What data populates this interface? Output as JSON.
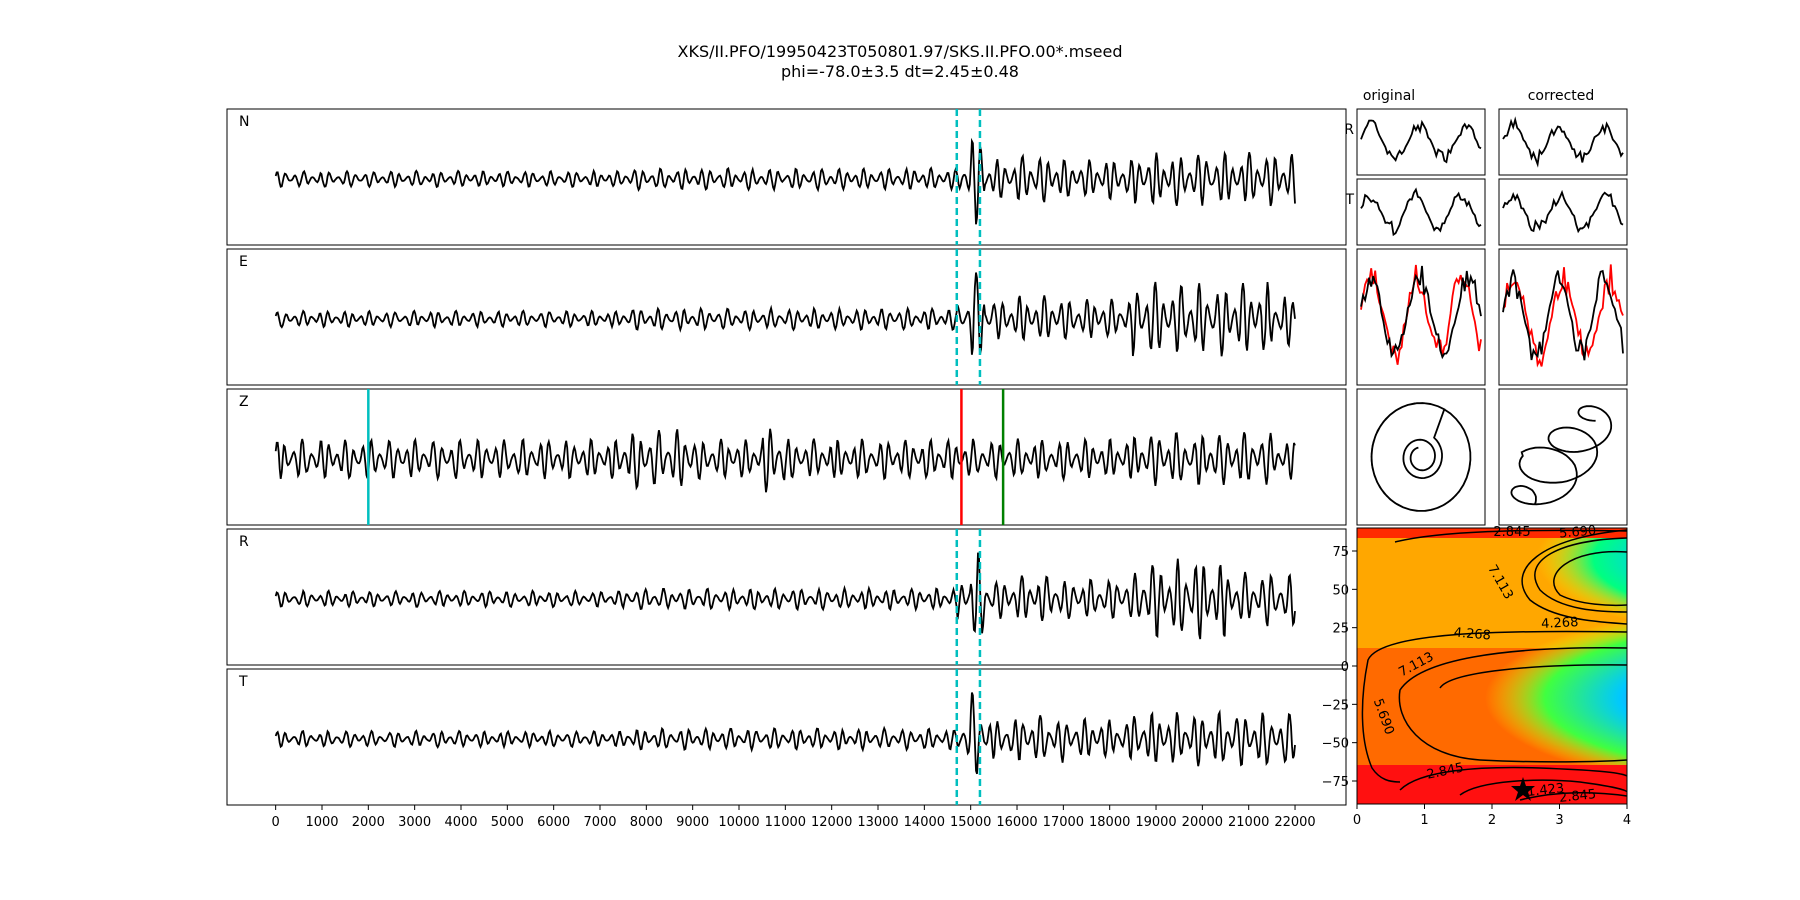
{
  "title": {
    "line1": "XKS/II.PFO/19950423T050801.97/SKS.II.PFO.00*.mseed",
    "line2": "phi=-78.0±3.5 dt=2.45±0.48"
  },
  "columns": {
    "original": "original",
    "corrected": "corrected"
  },
  "chart_data": [
    {
      "type": "line",
      "description_free": true,
      "traces": [
        "N",
        "E",
        "Z",
        "R",
        "T"
      ],
      "x_ticks": [
        0,
        1000,
        2000,
        3000,
        4000,
        5000,
        6000,
        7000,
        8000,
        9000,
        10000,
        11000,
        12000,
        13000,
        14000,
        15000,
        16000,
        17000,
        18000,
        19000,
        20000,
        21000,
        22000
      ],
      "xlim": [
        -1050,
        23100
      ],
      "trace_x_range": [
        0,
        22000
      ],
      "window_lines_cyan_dashed": [
        14700,
        15200
      ],
      "pick_line_cyan": 2000,
      "pick_line_red": 14800,
      "pick_line_green": 15700,
      "window_line_traces": [
        "N",
        "E",
        "R",
        "T"
      ],
      "pick_line_traces": [
        "Z"
      ]
    },
    {
      "type": "line",
      "panels": [
        "original",
        "corrected"
      ],
      "rows": [
        "R",
        "T"
      ],
      "particle_motion": true,
      "series_colors": {
        "radial": "#000000",
        "transverse_overlay": "#ff0000"
      }
    },
    {
      "type": "heatmap",
      "x_ticks": [
        0,
        1,
        2,
        3,
        4
      ],
      "y_ticks": [
        75,
        50,
        25,
        0,
        -25,
        -50,
        -75
      ],
      "xlim": [
        0,
        4
      ],
      "ylim": [
        -90,
        90
      ],
      "contour_levels": [
        "1.423",
        "2.845",
        "4.268",
        "5.690",
        "7.113"
      ],
      "best": {
        "dt": 2.45,
        "phi": -78.0
      },
      "colormap": "gist_rainbow"
    }
  ],
  "colors": {
    "cyan": "#00bfbf",
    "red": "#ff0000",
    "green": "#008000",
    "trace": "#000000"
  }
}
